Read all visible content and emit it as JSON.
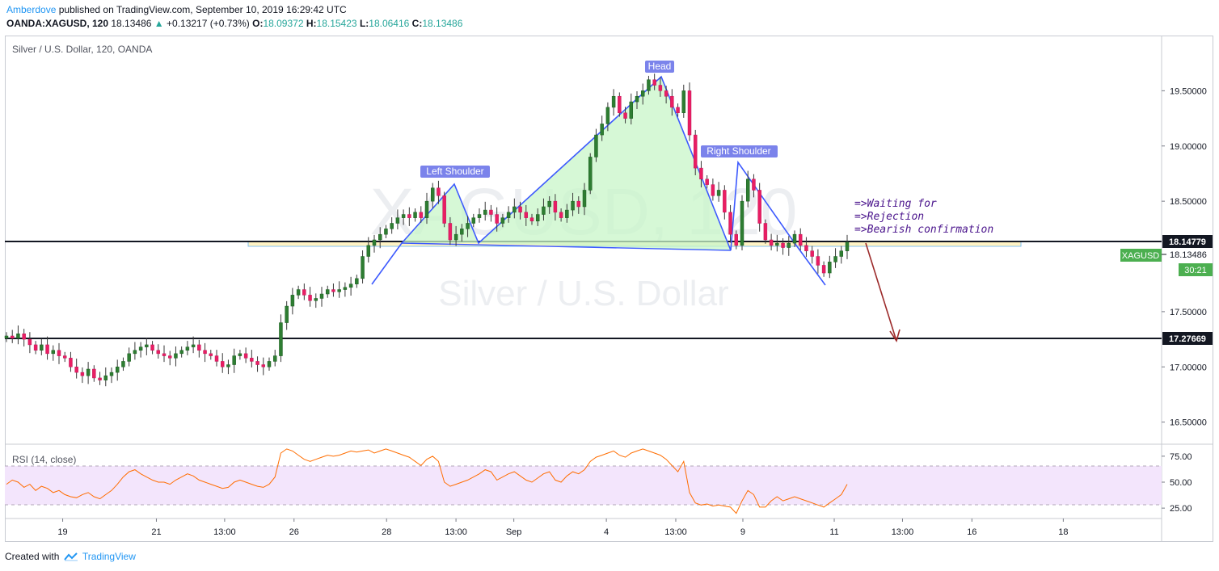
{
  "header": {
    "author": "Amberdove",
    "published_text": "published on TradingView.com, September 10, 2019 16:29:42 UTC",
    "symbol": "OANDA:XAGUSD, 120",
    "last": "18.13486",
    "change_arrow": "▲",
    "change": "+0.13217 (+0.73%)",
    "o_label": "O:",
    "o": "18.09372",
    "h_label": "H:",
    "h": "18.15423",
    "l_label": "L:",
    "l": "18.06416",
    "c_label": "C:",
    "c": "18.13486"
  },
  "footer": {
    "created_with": "Created with",
    "brand": "TradingView"
  },
  "colors": {
    "up": "#26a69a",
    "down": "#ef5350",
    "candle_body_down": "#e91e63",
    "pattern_line": "#3d5afe",
    "pattern_fill": "#c8f5c8",
    "rsi_line": "#ff6d00",
    "rsi_band": "#f3e5fc",
    "arrow": "#9c2a2a",
    "label_bg": "#7b83eb"
  },
  "chart_data": [
    {
      "type": "candlestick",
      "title": "Silver / U.S. Dollar, 120, OANDA",
      "watermark_symbol": "XAGUSD, 120",
      "watermark_name": "Silver / U.S. Dollar",
      "ylim": [
        16.3,
        20.0
      ],
      "y_ticks": [
        "19.50000",
        "19.00000",
        "18.50000",
        "17.50000",
        "17.00000",
        "16.50000"
      ],
      "y_tick_values": [
        19.5,
        19.0,
        18.5,
        17.5,
        17.0,
        16.5
      ],
      "x_ticks": [
        "19",
        "21",
        "13:00",
        "26",
        "28",
        "13:00",
        "Sep",
        "4",
        "13:00",
        "9",
        "11",
        "13:00",
        "16",
        "18"
      ],
      "x_tick_positions": [
        0.05,
        0.131,
        0.19,
        0.25,
        0.33,
        0.39,
        0.44,
        0.52,
        0.58,
        0.638,
        0.717,
        0.776,
        0.836,
        0.915
      ],
      "close_path": [
        17.28,
        17.26,
        17.3,
        17.25,
        17.2,
        17.15,
        17.2,
        17.12,
        17.15,
        17.1,
        17.08,
        17.0,
        16.95,
        16.92,
        16.98,
        16.9,
        16.88,
        16.92,
        16.95,
        17.0,
        17.05,
        17.12,
        17.15,
        17.18,
        17.2,
        17.15,
        17.12,
        17.1,
        17.08,
        17.12,
        17.15,
        17.18,
        17.2,
        17.15,
        17.12,
        17.1,
        17.05,
        17.0,
        17.02,
        17.1,
        17.12,
        17.08,
        17.05,
        17.02,
        17.0,
        17.05,
        17.1,
        17.4,
        17.55,
        17.65,
        17.7,
        17.65,
        17.6,
        17.62,
        17.66,
        17.7,
        17.68,
        17.7,
        17.72,
        17.75,
        17.8,
        18.0,
        18.1,
        18.15,
        18.2,
        18.25,
        18.3,
        18.35,
        18.38,
        18.35,
        18.4,
        18.35,
        18.5,
        18.62,
        18.55,
        18.3,
        18.15,
        18.2,
        18.25,
        18.3,
        18.35,
        18.38,
        18.42,
        18.38,
        18.3,
        18.35,
        18.4,
        18.45,
        18.4,
        18.35,
        18.32,
        18.38,
        18.45,
        18.5,
        18.4,
        18.35,
        18.42,
        18.5,
        18.45,
        18.6,
        18.9,
        19.1,
        19.2,
        19.35,
        19.45,
        19.3,
        19.25,
        19.4,
        19.45,
        19.5,
        19.6,
        19.55,
        19.5,
        19.45,
        19.35,
        19.3,
        19.5,
        19.1,
        18.8,
        18.7,
        18.65,
        18.55,
        18.6,
        18.4,
        18.2,
        18.1,
        18.5,
        18.7,
        18.6,
        18.3,
        18.15,
        18.1,
        18.12,
        18.08,
        18.12,
        18.2,
        18.1,
        18.05,
        18.0,
        17.92,
        17.85,
        17.95,
        18.0,
        18.05,
        18.13
      ],
      "pattern_labels": [
        "Left Shoulder",
        "Head",
        "Right Shoulder"
      ],
      "note_lines": [
        "=>Waiting for",
        "=>Rejection",
        "=>Bearish confirmation"
      ],
      "neckline_level": "18.14779",
      "current_price": "18.13486",
      "current_symbol": "XAGUSD",
      "countdown": "30:21",
      "target_level": "17.27669"
    },
    {
      "type": "line",
      "title": "RSI (14, close)",
      "ylim": [
        15,
        85
      ],
      "y_ticks": [
        "75.00",
        "50.00",
        "25.00"
      ],
      "y_tick_values": [
        75,
        50,
        25
      ],
      "values": [
        48,
        52,
        50,
        45,
        48,
        42,
        46,
        44,
        40,
        42,
        38,
        36,
        35,
        38,
        40,
        36,
        34,
        38,
        42,
        48,
        55,
        60,
        62,
        58,
        55,
        52,
        50,
        50,
        48,
        52,
        55,
        58,
        56,
        52,
        50,
        48,
        46,
        44,
        45,
        50,
        52,
        50,
        48,
        46,
        45,
        48,
        55,
        78,
        82,
        80,
        76,
        72,
        70,
        72,
        74,
        76,
        75,
        76,
        78,
        80,
        79,
        80,
        81,
        78,
        80,
        82,
        80,
        78,
        76,
        74,
        70,
        66,
        72,
        75,
        70,
        50,
        46,
        48,
        50,
        52,
        55,
        58,
        62,
        60,
        52,
        55,
        58,
        60,
        56,
        52,
        50,
        54,
        58,
        60,
        52,
        50,
        56,
        60,
        58,
        62,
        70,
        74,
        76,
        78,
        80,
        76,
        74,
        78,
        80,
        82,
        80,
        78,
        76,
        72,
        66,
        60,
        70,
        40,
        30,
        28,
        29,
        27,
        28,
        27,
        26,
        20,
        32,
        42,
        38,
        26,
        26,
        32,
        36,
        32,
        34,
        36,
        34,
        32,
        30,
        28,
        26,
        30,
        34,
        38,
        48
      ]
    }
  ]
}
